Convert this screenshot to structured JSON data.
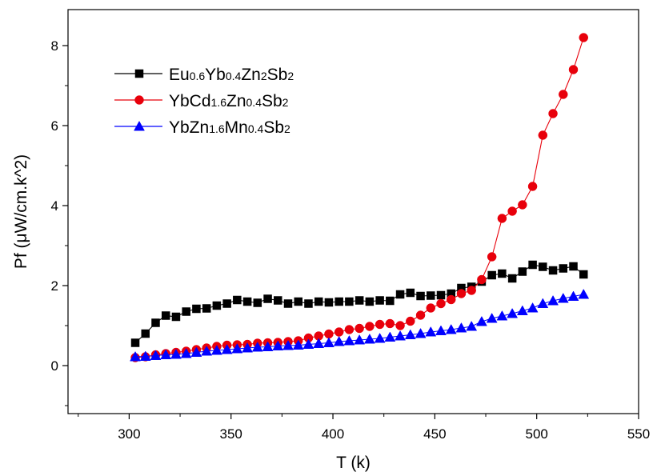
{
  "chart_data": {
    "type": "line",
    "title": "",
    "xlabel": "T (k)",
    "ylabel": "Pf (μW/cm.k^2)",
    "xlim": [
      270,
      550
    ],
    "ylim": [
      -1.2,
      8.9
    ],
    "xticks": [
      300,
      350,
      400,
      450,
      500,
      550
    ],
    "yticks": [
      0,
      2,
      4,
      6,
      8
    ],
    "grid": false,
    "legend_position": "top-left",
    "series": [
      {
        "name": "Eu0.6Yb0.4Zn2Sb2",
        "legend_parts": [
          [
            "Eu",
            false
          ],
          [
            "0.6",
            true
          ],
          [
            "Yb",
            false
          ],
          [
            "0.4",
            true
          ],
          [
            "Zn",
            false
          ],
          [
            "2",
            true
          ],
          [
            "Sb",
            false
          ],
          [
            "2",
            true
          ]
        ],
        "color": "#000000",
        "marker": "square",
        "x": [
          303,
          308,
          313,
          318,
          323,
          328,
          333,
          338,
          343,
          348,
          353,
          358,
          363,
          368,
          373,
          378,
          383,
          388,
          393,
          398,
          403,
          408,
          413,
          418,
          423,
          428,
          433,
          438,
          443,
          448,
          453,
          458,
          463,
          468,
          473,
          478,
          483,
          488,
          493,
          498,
          503,
          508,
          513,
          518,
          523
        ],
        "y": [
          0.57,
          0.8,
          1.07,
          1.25,
          1.22,
          1.35,
          1.42,
          1.43,
          1.5,
          1.55,
          1.64,
          1.6,
          1.57,
          1.67,
          1.63,
          1.55,
          1.6,
          1.55,
          1.6,
          1.58,
          1.6,
          1.6,
          1.63,
          1.6,
          1.63,
          1.62,
          1.78,
          1.82,
          1.74,
          1.75,
          1.76,
          1.8,
          1.94,
          1.97,
          2.1,
          2.26,
          2.3,
          2.18,
          2.35,
          2.52,
          2.47,
          2.38,
          2.43,
          2.48,
          2.28
        ]
      },
      {
        "name": "YbCd1.6Zn0.4Sb2",
        "legend_parts": [
          [
            "YbCd",
            false
          ],
          [
            "1.6",
            true
          ],
          [
            "Zn",
            false
          ],
          [
            "0.4",
            true
          ],
          [
            "Sb",
            false
          ],
          [
            "2",
            true
          ]
        ],
        "color": "#e8000b",
        "marker": "circle",
        "x": [
          303,
          308,
          313,
          318,
          323,
          328,
          333,
          338,
          343,
          348,
          353,
          358,
          363,
          368,
          373,
          378,
          383,
          388,
          393,
          398,
          403,
          408,
          413,
          418,
          423,
          428,
          433,
          438,
          443,
          448,
          453,
          458,
          463,
          468,
          473,
          478,
          483,
          488,
          493,
          498,
          503,
          508,
          513,
          518,
          523
        ],
        "y": [
          0.2,
          0.22,
          0.27,
          0.3,
          0.33,
          0.36,
          0.4,
          0.44,
          0.48,
          0.51,
          0.52,
          0.53,
          0.56,
          0.57,
          0.58,
          0.6,
          0.62,
          0.69,
          0.74,
          0.79,
          0.84,
          0.9,
          0.93,
          0.98,
          1.03,
          1.05,
          1.0,
          1.11,
          1.26,
          1.44,
          1.55,
          1.65,
          1.8,
          1.88,
          2.15,
          2.72,
          3.68,
          3.86,
          4.02,
          4.48,
          5.76,
          6.3,
          6.78,
          7.4,
          8.2
        ]
      },
      {
        "name": "YbZn1.6Mn0.4Sb2",
        "legend_parts": [
          [
            "YbZn",
            false
          ],
          [
            "1.6",
            true
          ],
          [
            "Mn",
            false
          ],
          [
            "0.4",
            true
          ],
          [
            "Sb",
            false
          ],
          [
            "2",
            true
          ]
        ],
        "color": "#0000ff",
        "marker": "triangle",
        "x": [
          303,
          308,
          313,
          318,
          323,
          328,
          333,
          338,
          343,
          348,
          353,
          358,
          363,
          368,
          373,
          378,
          383,
          388,
          393,
          398,
          403,
          408,
          413,
          418,
          423,
          428,
          433,
          438,
          443,
          448,
          453,
          458,
          463,
          468,
          473,
          478,
          483,
          488,
          493,
          498,
          503,
          508,
          513,
          518,
          523
        ],
        "y": [
          0.22,
          0.23,
          0.25,
          0.27,
          0.28,
          0.3,
          0.33,
          0.36,
          0.38,
          0.4,
          0.42,
          0.44,
          0.46,
          0.47,
          0.49,
          0.5,
          0.51,
          0.53,
          0.55,
          0.57,
          0.6,
          0.62,
          0.64,
          0.66,
          0.68,
          0.71,
          0.74,
          0.77,
          0.8,
          0.84,
          0.87,
          0.9,
          0.94,
          0.98,
          1.1,
          1.18,
          1.24,
          1.3,
          1.37,
          1.44,
          1.55,
          1.62,
          1.68,
          1.73,
          1.78
        ]
      }
    ]
  }
}
